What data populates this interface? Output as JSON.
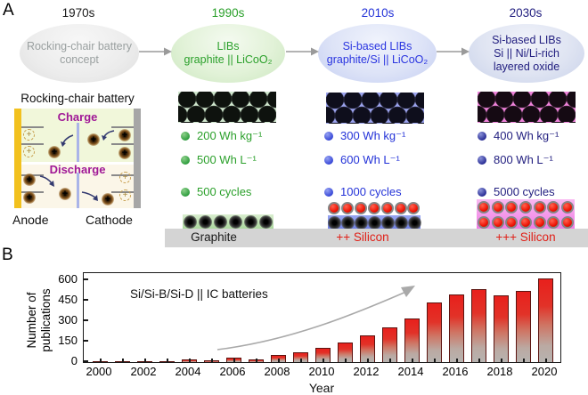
{
  "panel_a": {
    "label": "A",
    "timeline": [
      {
        "era": "1970s",
        "era_color": "#1a1a1a",
        "lines": [
          "Rocking-chair battery",
          "concept"
        ]
      },
      {
        "era": "1990s",
        "era_color": "#2ba02b",
        "lines": [
          "LIBs",
          "graphite || LiCoO₂"
        ]
      },
      {
        "era": "2010s",
        "era_color": "#2a35e0",
        "lines": [
          "Si-based LIBs",
          "graphite/Si || LiCoO₂"
        ]
      },
      {
        "era": "2030s",
        "era_color": "#232080",
        "lines": [
          "Si-based LIBs",
          "Si || Ni/Li-rich",
          "layered oxide"
        ]
      }
    ],
    "schematic": {
      "title": "Rocking-chair battery",
      "charge_label": "Charge",
      "discharge_label": "Discharge",
      "anode_label": "Anode",
      "cathode_label": "Cathode",
      "anode_collector_color": "#f2c11e",
      "cathode_collector_color": "#a6a6a6",
      "charge_bg": "#f1f7da",
      "discharge_bg": "#fbf6e8",
      "phase_text_color": "#a01896"
    },
    "columns": [
      {
        "specs": [
          "200 Wh kg⁻¹",
          "500 Wh L⁻¹",
          "500 cycles"
        ],
        "electrode_label": "Graphite",
        "accent": "#2ba02b",
        "label_color": "#1a1a1a"
      },
      {
        "specs": [
          "300 Wh kg⁻¹",
          "600 Wh L⁻¹",
          "1000 cycles"
        ],
        "electrode_label": "++ Silicon",
        "accent": "#2433d8",
        "label_color": "#e02018"
      },
      {
        "specs": [
          "400 Wh kg⁻¹",
          "800 Wh L⁻¹",
          "5000 cycles"
        ],
        "electrode_label": "+++ Silicon",
        "accent": "#232080",
        "label_color": "#e02018"
      }
    ]
  },
  "panel_b": {
    "label": "B"
  },
  "chart_data": {
    "type": "bar",
    "x": [
      2000,
      2001,
      2002,
      2003,
      2004,
      2005,
      2006,
      2007,
      2008,
      2009,
      2010,
      2011,
      2012,
      2013,
      2014,
      2015,
      2016,
      2017,
      2018,
      2019,
      2020
    ],
    "values": [
      3,
      5,
      7,
      9,
      18,
      13,
      30,
      22,
      50,
      70,
      105,
      145,
      195,
      255,
      320,
      435,
      495,
      532,
      488,
      522,
      615
    ],
    "annotation": "Si/Si-B/Si-D || IC batteries",
    "xlabel": "Year",
    "ylabel": "Number of publications",
    "ylabel_lines": [
      "Number of",
      "publications"
    ],
    "yticks": [
      0,
      150,
      300,
      450,
      600
    ],
    "xtick_labels": [
      "2000",
      "2002",
      "2004",
      "2006",
      "2008",
      "2010",
      "2012",
      "2014",
      "2016",
      "2018",
      "2020"
    ],
    "ylim": [
      0,
      660
    ],
    "grid": false,
    "legend": "none",
    "bar_color_top": "#e8201c",
    "bar_color_bottom": "#b7b3b0",
    "trend_arrow_color": "#a9a9a9"
  }
}
